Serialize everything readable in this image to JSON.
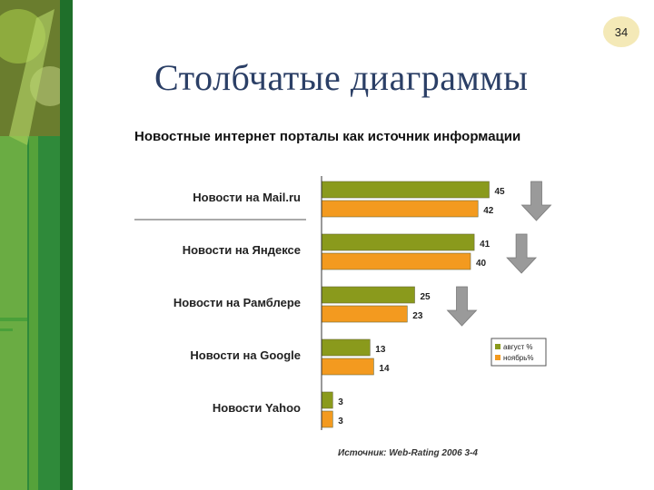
{
  "slide": {
    "page_number": "34",
    "title": "Столбчатые диаграммы"
  },
  "colors": {
    "august": "#8a9a1c",
    "november": "#f39a1f",
    "arrow": "#9a9a9a",
    "sidebar_dark": "#1f6f2a",
    "sidebar_light": "#8cc63f"
  },
  "chart_data": {
    "type": "bar",
    "orientation": "horizontal",
    "title": "Новостные интернет порталы как источник информации",
    "categories": [
      "Новости на Mail.ru",
      "Новости на Яндексе",
      "Новости на Рамблере",
      "Новости на Google",
      "Новости Yahoo"
    ],
    "series": [
      {
        "name": "август %",
        "color": "#8a9a1c",
        "values": [
          45,
          41,
          25,
          13,
          3
        ]
      },
      {
        "name": "ноябрь%",
        "color": "#f39a1f",
        "values": [
          42,
          40,
          23,
          14,
          3
        ]
      }
    ],
    "decline_arrows": [
      "Новости на Mail.ru",
      "Новости на Яндексе",
      "Новости на Рамблере"
    ],
    "legend_position": "right",
    "source": "Источник: Web-Rating 2006 3-4",
    "grid": false
  }
}
